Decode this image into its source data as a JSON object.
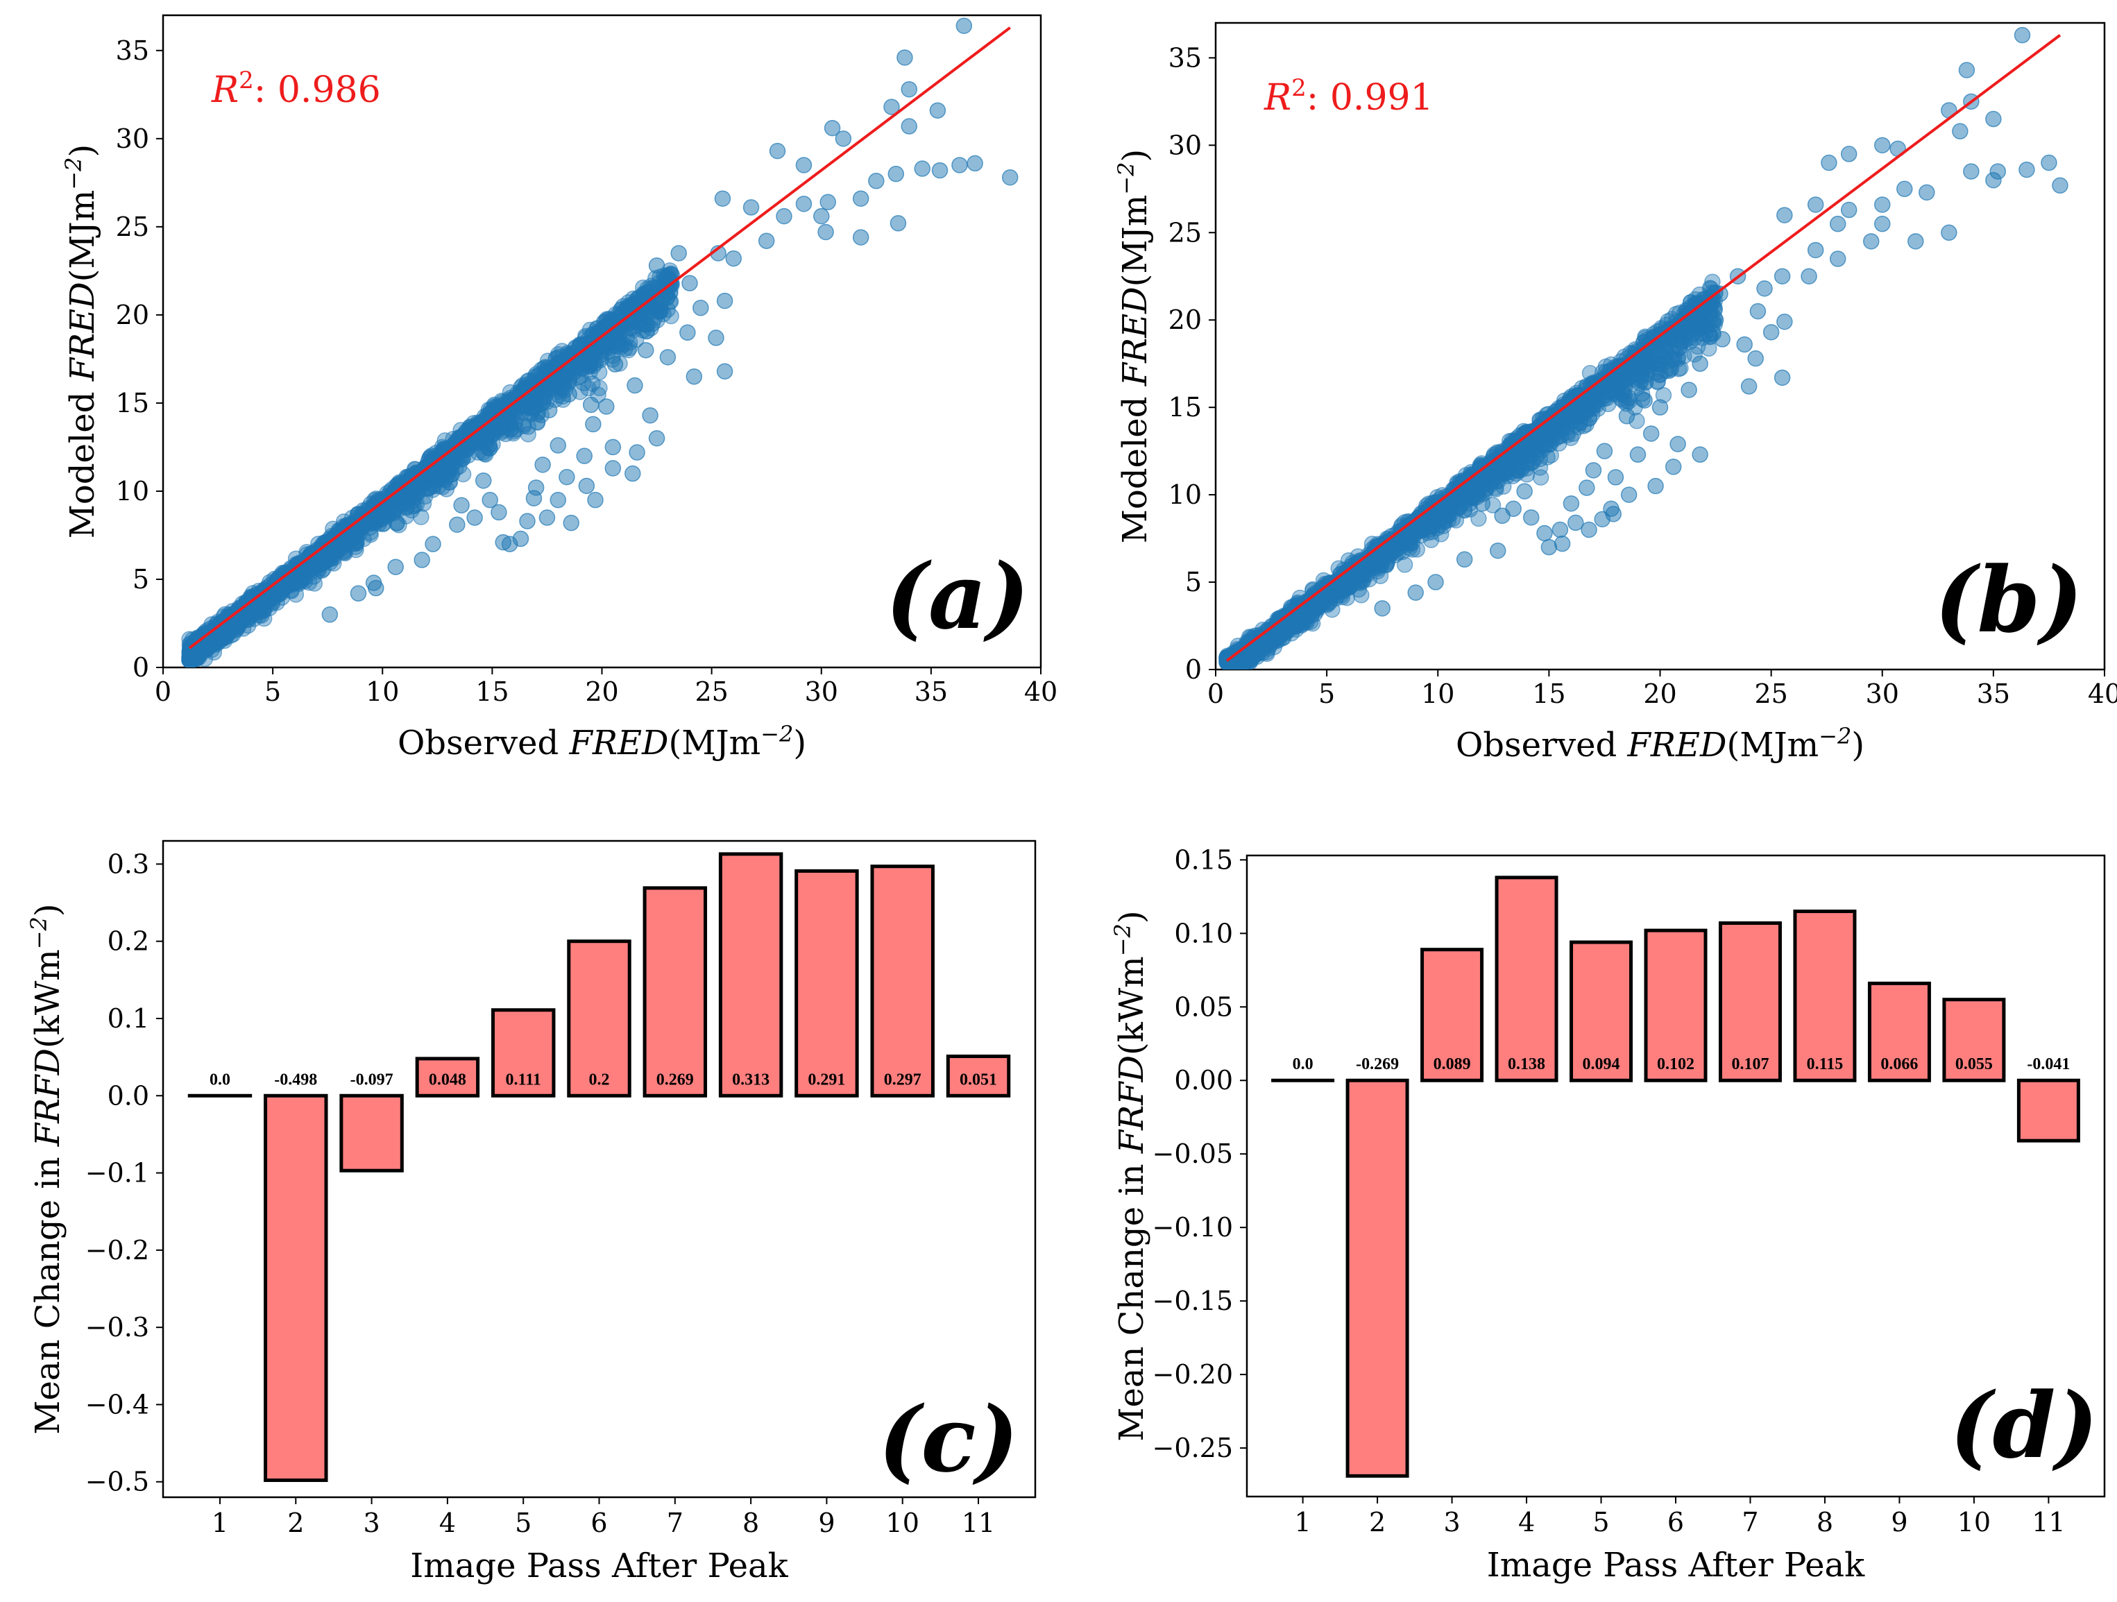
{
  "chart_data": [
    {
      "panel": "(a)",
      "type": "scatter",
      "xlabel": "Observed FRED(MJm⁻²)",
      "xlabel_plain": "Observed ",
      "xlabel_math": "FRED",
      "xlabel_unit": "(MJm",
      "xlabel_exp": "−2",
      "xlabel_close": ")",
      "ylabel": "Modeled FRED(MJm⁻²)",
      "ylabel_plain": "Modeled ",
      "ylabel_math": "FRED",
      "ylabel_unit": "(MJm",
      "ylabel_exp": "−2",
      "ylabel_close": ")",
      "annotation": "R²: 0.986",
      "annotation_sym": "R",
      "annotation_sup": "2",
      "annotation_val": ": 0.986",
      "xlim": [
        0,
        40
      ],
      "ylim": [
        0,
        37
      ],
      "xticks": [
        "0",
        "5",
        "10",
        "15",
        "20",
        "25",
        "30",
        "35",
        "40"
      ],
      "xtick_values": [
        0,
        5,
        10,
        15,
        20,
        25,
        30,
        35,
        40
      ],
      "yticks": [
        "0",
        "5",
        "10",
        "15",
        "20",
        "25",
        "30",
        "35"
      ],
      "ytick_values": [
        0,
        5,
        10,
        15,
        20,
        25,
        30,
        35
      ],
      "fit_line": {
        "x": [
          1.2,
          38.6
        ],
        "y": [
          1.1,
          36.3
        ]
      },
      "outliers": [
        {
          "x": 36.5,
          "y": 36.4
        },
        {
          "x": 33.8,
          "y": 34.6
        },
        {
          "x": 34.0,
          "y": 32.8
        },
        {
          "x": 33.2,
          "y": 31.8
        },
        {
          "x": 35.3,
          "y": 31.6
        },
        {
          "x": 34.0,
          "y": 30.7
        },
        {
          "x": 30.5,
          "y": 30.6
        },
        {
          "x": 31.0,
          "y": 30.0
        },
        {
          "x": 28.0,
          "y": 29.3
        },
        {
          "x": 29.2,
          "y": 28.5
        },
        {
          "x": 33.4,
          "y": 28.0
        },
        {
          "x": 34.6,
          "y": 28.3
        },
        {
          "x": 35.4,
          "y": 28.2
        },
        {
          "x": 36.3,
          "y": 28.5
        },
        {
          "x": 37.0,
          "y": 28.6
        },
        {
          "x": 38.6,
          "y": 27.8
        },
        {
          "x": 32.5,
          "y": 27.6
        },
        {
          "x": 31.8,
          "y": 26.6
        },
        {
          "x": 30.3,
          "y": 26.4
        },
        {
          "x": 29.2,
          "y": 26.3
        },
        {
          "x": 26.8,
          "y": 26.1
        },
        {
          "x": 25.5,
          "y": 26.6
        },
        {
          "x": 28.3,
          "y": 25.6
        },
        {
          "x": 30.0,
          "y": 25.6
        },
        {
          "x": 33.5,
          "y": 25.2
        },
        {
          "x": 31.8,
          "y": 24.4
        },
        {
          "x": 30.2,
          "y": 24.7
        },
        {
          "x": 27.5,
          "y": 24.2
        },
        {
          "x": 26.0,
          "y": 23.2
        },
        {
          "x": 25.3,
          "y": 23.5
        },
        {
          "x": 23.5,
          "y": 23.5
        },
        {
          "x": 22.5,
          "y": 22.8
        },
        {
          "x": 24.0,
          "y": 21.8
        },
        {
          "x": 25.6,
          "y": 20.8
        },
        {
          "x": 24.5,
          "y": 20.4
        },
        {
          "x": 22.8,
          "y": 21.0
        },
        {
          "x": 22.3,
          "y": 19.5
        },
        {
          "x": 23.9,
          "y": 19.0
        },
        {
          "x": 25.2,
          "y": 18.7
        },
        {
          "x": 23.0,
          "y": 17.6
        },
        {
          "x": 25.6,
          "y": 16.8
        },
        {
          "x": 24.2,
          "y": 16.5
        },
        {
          "x": 22.0,
          "y": 18.0
        },
        {
          "x": 20.6,
          "y": 17.2
        },
        {
          "x": 21.5,
          "y": 16.0
        },
        {
          "x": 22.2,
          "y": 14.3
        },
        {
          "x": 20.2,
          "y": 14.8
        },
        {
          "x": 19.5,
          "y": 14.9
        },
        {
          "x": 18.5,
          "y": 15.5
        },
        {
          "x": 17.6,
          "y": 14.6
        },
        {
          "x": 19.6,
          "y": 13.8
        },
        {
          "x": 20.5,
          "y": 12.5
        },
        {
          "x": 22.5,
          "y": 13.0
        },
        {
          "x": 21.6,
          "y": 12.2
        },
        {
          "x": 19.2,
          "y": 12.0
        },
        {
          "x": 18.0,
          "y": 12.6
        },
        {
          "x": 20.5,
          "y": 11.3
        },
        {
          "x": 21.4,
          "y": 11.0
        },
        {
          "x": 19.3,
          "y": 10.3
        },
        {
          "x": 17.3,
          "y": 11.5
        },
        {
          "x": 18.4,
          "y": 10.8
        },
        {
          "x": 17.0,
          "y": 10.2
        },
        {
          "x": 18.0,
          "y": 9.5
        },
        {
          "x": 19.7,
          "y": 9.5
        },
        {
          "x": 17.5,
          "y": 8.5
        },
        {
          "x": 18.6,
          "y": 8.2
        },
        {
          "x": 16.6,
          "y": 8.3
        },
        {
          "x": 15.8,
          "y": 7.0
        },
        {
          "x": 16.3,
          "y": 7.3
        },
        {
          "x": 15.5,
          "y": 7.1
        },
        {
          "x": 14.9,
          "y": 9.5
        },
        {
          "x": 14.2,
          "y": 8.5
        },
        {
          "x": 13.6,
          "y": 9.2
        },
        {
          "x": 12.3,
          "y": 7.0
        },
        {
          "x": 11.8,
          "y": 6.1
        },
        {
          "x": 10.6,
          "y": 5.7
        },
        {
          "x": 9.6,
          "y": 4.8
        },
        {
          "x": 8.9,
          "y": 4.2
        },
        {
          "x": 9.7,
          "y": 4.5
        },
        {
          "x": 7.6,
          "y": 3.0
        },
        {
          "x": 16.9,
          "y": 9.6
        },
        {
          "x": 15.3,
          "y": 8.8
        },
        {
          "x": 14.6,
          "y": 10.6
        },
        {
          "x": 13.4,
          "y": 8.1
        }
      ]
    },
    {
      "panel": "(b)",
      "type": "scatter",
      "xlabel": "Observed FRED(MJm⁻²)",
      "xlabel_plain": "Observed ",
      "xlabel_math": "FRED",
      "xlabel_unit": "(MJm",
      "xlabel_exp": "−2",
      "xlabel_close": ")",
      "ylabel": "Modeled FRED(MJm⁻²)",
      "ylabel_plain": "Modeled ",
      "ylabel_math": "FRED",
      "ylabel_unit": "(MJm",
      "ylabel_exp": "−2",
      "ylabel_close": ")",
      "annotation": "R²: 0.991",
      "annotation_sym": "R",
      "annotation_sup": "2",
      "annotation_val": ": 0.991",
      "xlim": [
        0,
        40
      ],
      "ylim": [
        0,
        37
      ],
      "xticks": [
        "0",
        "5",
        "10",
        "15",
        "20",
        "25",
        "30",
        "35",
        "40"
      ],
      "xtick_values": [
        0,
        5,
        10,
        15,
        20,
        25,
        30,
        35,
        40
      ],
      "yticks": [
        "0",
        "5",
        "10",
        "15",
        "20",
        "25",
        "30",
        "35"
      ],
      "ytick_values": [
        0,
        5,
        10,
        15,
        20,
        25,
        30,
        35
      ],
      "fit_line": {
        "x": [
          0.5,
          38.0
        ],
        "y": [
          0.5,
          36.3
        ]
      },
      "outliers": [
        {
          "x": 36.3,
          "y": 36.3
        },
        {
          "x": 33.8,
          "y": 34.3
        },
        {
          "x": 33.0,
          "y": 32.0
        },
        {
          "x": 34.0,
          "y": 32.5
        },
        {
          "x": 35.0,
          "y": 31.5
        },
        {
          "x": 30.0,
          "y": 30.0
        },
        {
          "x": 30.7,
          "y": 29.8
        },
        {
          "x": 33.5,
          "y": 30.8
        },
        {
          "x": 28.5,
          "y": 29.5
        },
        {
          "x": 27.6,
          "y": 29.0
        },
        {
          "x": 34.0,
          "y": 28.5
        },
        {
          "x": 35.2,
          "y": 28.5
        },
        {
          "x": 36.5,
          "y": 28.6
        },
        {
          "x": 37.5,
          "y": 29.0
        },
        {
          "x": 38.0,
          "y": 27.7
        },
        {
          "x": 35.0,
          "y": 28.0
        },
        {
          "x": 31.0,
          "y": 27.5
        },
        {
          "x": 32.0,
          "y": 27.3
        },
        {
          "x": 30.0,
          "y": 26.6
        },
        {
          "x": 28.5,
          "y": 26.3
        },
        {
          "x": 27.0,
          "y": 26.6
        },
        {
          "x": 25.6,
          "y": 26.0
        },
        {
          "x": 28.0,
          "y": 25.5
        },
        {
          "x": 30.0,
          "y": 25.5
        },
        {
          "x": 33.0,
          "y": 25.0
        },
        {
          "x": 31.5,
          "y": 24.5
        },
        {
          "x": 29.5,
          "y": 24.5
        },
        {
          "x": 28.0,
          "y": 23.5
        },
        {
          "x": 27.0,
          "y": 24.0
        },
        {
          "x": 25.5,
          "y": 22.5
        },
        {
          "x": 26.7,
          "y": 22.5
        },
        {
          "x": 24.7,
          "y": 21.8
        },
        {
          "x": 23.5,
          "y": 22.5
        },
        {
          "x": 22.7,
          "y": 21.5
        },
        {
          "x": 24.4,
          "y": 20.5
        },
        {
          "x": 22.5,
          "y": 20.0
        },
        {
          "x": 25.6,
          "y": 19.9
        },
        {
          "x": 25.0,
          "y": 19.3
        },
        {
          "x": 23.8,
          "y": 18.6
        },
        {
          "x": 22.8,
          "y": 18.9
        },
        {
          "x": 24.3,
          "y": 17.8
        },
        {
          "x": 25.5,
          "y": 16.7
        },
        {
          "x": 24.0,
          "y": 16.2
        },
        {
          "x": 21.8,
          "y": 17.5
        },
        {
          "x": 20.4,
          "y": 17.1
        },
        {
          "x": 21.3,
          "y": 16.0
        },
        {
          "x": 20.0,
          "y": 15.0
        },
        {
          "x": 19.3,
          "y": 15.4
        },
        {
          "x": 18.5,
          "y": 14.5
        },
        {
          "x": 19.6,
          "y": 13.5
        },
        {
          "x": 21.8,
          "y": 12.3
        },
        {
          "x": 20.8,
          "y": 12.9
        },
        {
          "x": 20.6,
          "y": 11.6
        },
        {
          "x": 19.0,
          "y": 12.3
        },
        {
          "x": 17.5,
          "y": 12.5
        },
        {
          "x": 17.0,
          "y": 11.4
        },
        {
          "x": 18.0,
          "y": 11.0
        },
        {
          "x": 19.8,
          "y": 10.5
        },
        {
          "x": 18.6,
          "y": 10.0
        },
        {
          "x": 17.8,
          "y": 9.2
        },
        {
          "x": 16.7,
          "y": 10.4
        },
        {
          "x": 16.0,
          "y": 9.5
        },
        {
          "x": 15.5,
          "y": 8.0
        },
        {
          "x": 15.0,
          "y": 7.0
        },
        {
          "x": 14.8,
          "y": 7.8
        },
        {
          "x": 15.6,
          "y": 7.2
        },
        {
          "x": 16.2,
          "y": 8.4
        },
        {
          "x": 16.8,
          "y": 8.0
        },
        {
          "x": 17.4,
          "y": 8.6
        },
        {
          "x": 17.9,
          "y": 8.9
        },
        {
          "x": 14.2,
          "y": 8.7
        },
        {
          "x": 13.4,
          "y": 9.2
        },
        {
          "x": 13.9,
          "y": 10.2
        },
        {
          "x": 12.9,
          "y": 8.8
        },
        {
          "x": 12.0,
          "y": 9.5
        },
        {
          "x": 12.7,
          "y": 6.8
        },
        {
          "x": 11.2,
          "y": 6.3
        },
        {
          "x": 9.9,
          "y": 5.0
        },
        {
          "x": 9.0,
          "y": 4.4
        },
        {
          "x": 7.5,
          "y": 3.5
        }
      ]
    },
    {
      "panel": "(c)",
      "type": "bar",
      "xlabel": "Image Pass After Peak",
      "ylabel": "Mean Change in FRFD(kWm⁻²)",
      "ylabel_plain": "Mean Change in ",
      "ylabel_math": "FRFD",
      "ylabel_unit": "(kWm",
      "ylabel_exp": "−2",
      "ylabel_close": ")",
      "categories": [
        "1",
        "2",
        "3",
        "4",
        "5",
        "6",
        "7",
        "8",
        "9",
        "10",
        "11"
      ],
      "values": [
        0.0,
        -0.498,
        -0.097,
        0.048,
        0.111,
        0.2,
        0.269,
        0.313,
        0.291,
        0.297,
        0.051
      ],
      "data_labels": [
        "0.0",
        "-0.498",
        "-0.097",
        "0.048",
        "0.111",
        "0.2",
        "0.269",
        "0.313",
        "0.291",
        "0.297",
        "0.051"
      ],
      "ylim": [
        -0.52,
        0.33
      ],
      "yticks": [
        "−0.5",
        "−0.4",
        "−0.3",
        "−0.2",
        "−0.1",
        "0.0",
        "0.1",
        "0.2",
        "0.3"
      ],
      "ytick_values": [
        -0.5,
        -0.4,
        -0.3,
        -0.2,
        -0.1,
        0.0,
        0.1,
        0.2,
        0.3
      ],
      "bar_color": "#ff7f7f"
    },
    {
      "panel": "(d)",
      "type": "bar",
      "xlabel": "Image Pass After Peak",
      "ylabel": "Mean Change in FRFD(kWm⁻²)",
      "ylabel_plain": "Mean Change in ",
      "ylabel_math": "FRFD",
      "ylabel_unit": "(kWm",
      "ylabel_exp": "−2",
      "ylabel_close": ")",
      "categories": [
        "1",
        "2",
        "3",
        "4",
        "5",
        "6",
        "7",
        "8",
        "9",
        "10",
        "11"
      ],
      "values": [
        0.0,
        -0.269,
        0.089,
        0.138,
        0.094,
        0.102,
        0.107,
        0.115,
        0.066,
        0.055,
        -0.041
      ],
      "data_labels": [
        "0.0",
        "-0.269",
        "0.089",
        "0.138",
        "0.094",
        "0.102",
        "0.107",
        "0.115",
        "0.066",
        "0.055",
        "-0.041"
      ],
      "ylim": [
        -0.283,
        0.153
      ],
      "yticks": [
        "−0.25",
        "−0.20",
        "−0.15",
        "−0.10",
        "−0.05",
        "0.00",
        "0.05",
        "0.10",
        "0.15"
      ],
      "ytick_values": [
        -0.25,
        -0.2,
        -0.15,
        -0.1,
        -0.05,
        0.0,
        0.05,
        0.1,
        0.15
      ],
      "bar_color": "#ff7f7f"
    }
  ],
  "colors": {
    "scatter_point": "#1f77b4",
    "fit_line": "#ee1c1c",
    "annotation": "#ee1c1c",
    "bar_fill": "#ff7f7f",
    "bar_edge": "#000000"
  }
}
